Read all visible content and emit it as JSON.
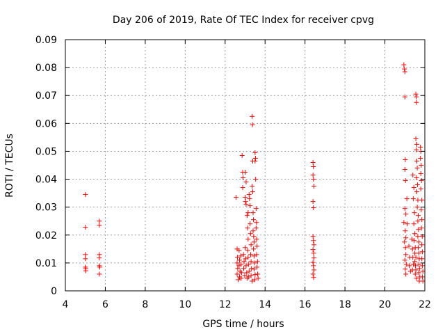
{
  "chart_data": {
    "type": "scatter",
    "title": "Day 206 of 2019, Rate Of TEC Index for receiver cpvg",
    "xlabel": "GPS time / hours",
    "ylabel": "ROTI / TECUs",
    "xlim": [
      4,
      22
    ],
    "ylim": [
      0,
      0.09
    ],
    "xticks": [
      "4",
      "6",
      "8",
      "10",
      "12",
      "14",
      "16",
      "18",
      "20",
      "22"
    ],
    "yticks": [
      "0",
      "0.01",
      "0.02",
      "0.03",
      "0.04",
      "0.05",
      "0.06",
      "0.07",
      "0.08",
      "0.09"
    ],
    "grid": true,
    "marker": "plus",
    "color": "#ff0000",
    "series": [
      {
        "points": [
          [
            5.0,
            0.0345
          ],
          [
            5.0,
            0.0228
          ],
          [
            5.0,
            0.013
          ],
          [
            5.0,
            0.0115
          ],
          [
            5.0,
            0.0085
          ],
          [
            5.02,
            0.008
          ],
          [
            5.02,
            0.0072
          ],
          [
            5.7,
            0.025
          ],
          [
            5.7,
            0.0235
          ],
          [
            5.7,
            0.013
          ],
          [
            5.7,
            0.0118
          ],
          [
            5.7,
            0.009
          ],
          [
            5.72,
            0.0085
          ],
          [
            5.7,
            0.006
          ],
          [
            12.55,
            0.0335
          ],
          [
            12.6,
            0.015
          ],
          [
            12.62,
            0.012
          ],
          [
            12.6,
            0.01
          ],
          [
            12.63,
            0.008
          ],
          [
            12.6,
            0.006
          ],
          [
            12.65,
            0.004
          ],
          [
            12.7,
            0.0145
          ],
          [
            12.72,
            0.011
          ],
          [
            12.7,
            0.009
          ],
          [
            12.75,
            0.007
          ],
          [
            12.72,
            0.005
          ],
          [
            12.78,
            0.0125
          ],
          [
            12.8,
            0.0095
          ],
          [
            12.82,
            0.0065
          ],
          [
            12.8,
            0.0045
          ],
          [
            12.85,
            0.0485
          ],
          [
            12.88,
            0.0425
          ],
          [
            12.9,
            0.0405
          ],
          [
            12.88,
            0.037
          ],
          [
            12.92,
            0.013
          ],
          [
            12.95,
            0.0105
          ],
          [
            12.93,
            0.008
          ],
          [
            12.98,
            0.0055
          ],
          [
            13.0,
            0.0335
          ],
          [
            13.02,
            0.032
          ],
          [
            13.05,
            0.031
          ],
          [
            13.0,
            0.0155
          ],
          [
            13.03,
            0.0115
          ],
          [
            13.05,
            0.009
          ],
          [
            13.08,
            0.0065
          ],
          [
            13.1,
            0.0045
          ],
          [
            13.1,
            0.027
          ],
          [
            13.12,
            0.0225
          ],
          [
            13.15,
            0.0185
          ],
          [
            13.13,
            0.0145
          ],
          [
            13.15,
            0.012
          ],
          [
            13.18,
            0.0095
          ],
          [
            13.2,
            0.007
          ],
          [
            13.18,
            0.005
          ],
          [
            13.2,
            0.0345
          ],
          [
            13.22,
            0.033
          ],
          [
            13.25,
            0.0305
          ],
          [
            13.25,
            0.024
          ],
          [
            13.27,
            0.0205
          ],
          [
            13.3,
            0.0165
          ],
          [
            13.28,
            0.013
          ],
          [
            13.3,
            0.0105
          ],
          [
            13.32,
            0.008
          ],
          [
            13.3,
            0.0055
          ],
          [
            13.35,
            0.0035
          ],
          [
            13.35,
            0.0625
          ],
          [
            13.37,
            0.0595
          ],
          [
            13.38,
            0.0465
          ],
          [
            13.35,
            0.0375
          ],
          [
            13.38,
            0.0355
          ],
          [
            13.4,
            0.028
          ],
          [
            13.42,
            0.0255
          ],
          [
            13.4,
            0.0215
          ],
          [
            13.43,
            0.0195
          ],
          [
            13.45,
            0.0175
          ],
          [
            13.42,
            0.015
          ],
          [
            13.45,
            0.0125
          ],
          [
            13.47,
            0.01
          ],
          [
            13.45,
            0.0078
          ],
          [
            13.5,
            0.0058
          ],
          [
            13.48,
            0.004
          ],
          [
            13.5,
            0.0495
          ],
          [
            13.52,
            0.0475
          ],
          [
            13.5,
            0.0465
          ],
          [
            13.53,
            0.04
          ],
          [
            13.55,
            0.0295
          ],
          [
            13.57,
            0.0245
          ],
          [
            13.55,
            0.0225
          ],
          [
            13.58,
            0.0185
          ],
          [
            13.6,
            0.016
          ],
          [
            13.58,
            0.013
          ],
          [
            13.62,
            0.0105
          ],
          [
            13.6,
            0.0085
          ],
          [
            13.63,
            0.006
          ],
          [
            13.65,
            0.0045
          ],
          [
            13.0,
            0.0425
          ],
          [
            13.05,
            0.039
          ],
          [
            13.15,
            0.028
          ],
          [
            16.4,
            0.046
          ],
          [
            16.42,
            0.0445
          ],
          [
            16.4,
            0.0415
          ],
          [
            16.42,
            0.04
          ],
          [
            16.45,
            0.0375
          ],
          [
            16.4,
            0.032
          ],
          [
            16.42,
            0.0298
          ],
          [
            16.4,
            0.0195
          ],
          [
            16.42,
            0.018
          ],
          [
            16.45,
            0.0165
          ],
          [
            16.4,
            0.0148
          ],
          [
            16.43,
            0.0135
          ],
          [
            16.45,
            0.0118
          ],
          [
            16.4,
            0.0102
          ],
          [
            16.42,
            0.009
          ],
          [
            16.45,
            0.0075
          ],
          [
            16.4,
            0.006
          ],
          [
            16.43,
            0.0048
          ],
          [
            20.95,
            0.081
          ],
          [
            20.98,
            0.0795
          ],
          [
            21.0,
            0.0785
          ],
          [
            21.0,
            0.0695
          ],
          [
            21.02,
            0.047
          ],
          [
            21.0,
            0.0435
          ],
          [
            21.03,
            0.0395
          ],
          [
            21.0,
            0.0295
          ],
          [
            21.05,
            0.0275
          ],
          [
            20.95,
            0.0245
          ],
          [
            21.02,
            0.0215
          ],
          [
            21.05,
            0.019
          ],
          [
            20.98,
            0.0175
          ],
          [
            21.03,
            0.0155
          ],
          [
            21.05,
            0.013
          ],
          [
            21.0,
            0.011
          ],
          [
            21.07,
            0.0095
          ],
          [
            21.02,
            0.0078
          ],
          [
            21.05,
            0.006
          ],
          [
            21.1,
            0.033
          ],
          [
            21.12,
            0.024
          ],
          [
            21.4,
            0.0415
          ],
          [
            21.45,
            0.037
          ],
          [
            21.42,
            0.033
          ],
          [
            21.48,
            0.028
          ],
          [
            21.45,
            0.024
          ],
          [
            21.5,
            0.0205
          ],
          [
            21.47,
            0.018
          ],
          [
            21.52,
            0.0155
          ],
          [
            21.5,
            0.0135
          ],
          [
            21.55,
            0.012
          ],
          [
            21.5,
            0.0105
          ],
          [
            21.53,
            0.009
          ],
          [
            21.55,
            0.0075
          ],
          [
            21.52,
            0.006
          ],
          [
            21.58,
            0.0045
          ],
          [
            21.55,
            0.0705
          ],
          [
            21.57,
            0.0695
          ],
          [
            21.58,
            0.0675
          ],
          [
            21.55,
            0.0545
          ],
          [
            21.6,
            0.0525
          ],
          [
            21.57,
            0.0505
          ],
          [
            21.6,
            0.0465
          ],
          [
            21.62,
            0.044
          ],
          [
            21.58,
            0.0405
          ],
          [
            21.63,
            0.038
          ],
          [
            21.6,
            0.0355
          ],
          [
            21.65,
            0.0325
          ],
          [
            21.62,
            0.03
          ],
          [
            21.67,
            0.027
          ],
          [
            21.65,
            0.025
          ],
          [
            21.68,
            0.022
          ],
          [
            21.65,
            0.0195
          ],
          [
            21.7,
            0.0175
          ],
          [
            21.67,
            0.0155
          ],
          [
            21.7,
            0.0135
          ],
          [
            21.72,
            0.0115
          ],
          [
            21.7,
            0.0095
          ],
          [
            21.73,
            0.008
          ],
          [
            21.7,
            0.0065
          ],
          [
            21.75,
            0.005
          ],
          [
            21.72,
            0.0035
          ],
          [
            21.78,
            0.0515
          ],
          [
            21.8,
            0.05
          ],
          [
            21.78,
            0.0475
          ],
          [
            21.82,
            0.045
          ],
          [
            21.8,
            0.042
          ],
          [
            21.83,
            0.0395
          ],
          [
            21.8,
            0.0365
          ],
          [
            21.85,
            0.0325
          ],
          [
            21.82,
            0.029
          ],
          [
            21.85,
            0.0255
          ],
          [
            21.83,
            0.0225
          ],
          [
            21.87,
            0.0195
          ],
          [
            21.85,
            0.0165
          ],
          [
            21.88,
            0.014
          ],
          [
            21.85,
            0.0115
          ],
          [
            21.88,
            0.009
          ],
          [
            21.9,
            0.007
          ],
          [
            21.88,
            0.005
          ],
          [
            21.9,
            0.0035
          ],
          [
            21.35,
            0.0185
          ],
          [
            21.38,
            0.015
          ],
          [
            21.4,
            0.012
          ],
          [
            21.42,
            0.0095
          ],
          [
            21.38,
            0.0075
          ],
          [
            21.2,
            0.016
          ],
          [
            21.25,
            0.012
          ],
          [
            21.22,
            0.009
          ],
          [
            21.28,
            0.007
          ]
        ]
      }
    ]
  }
}
